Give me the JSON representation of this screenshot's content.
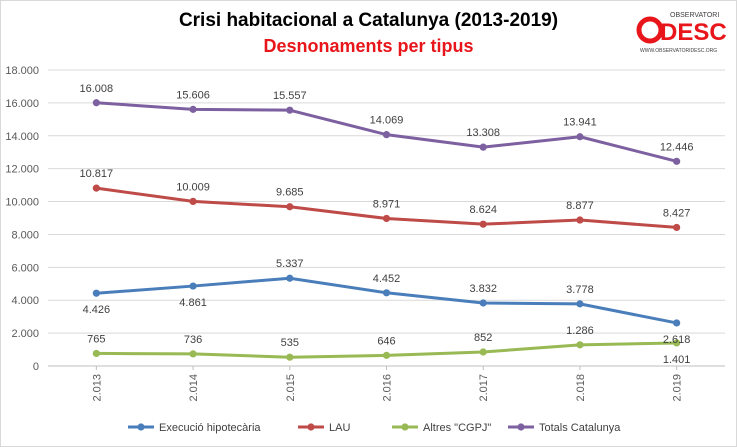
{
  "chart_data": {
    "type": "line",
    "title": "Crisi habitacional a Catalunya (2013-2019)",
    "subtitle": "Desnonaments per tipus",
    "categories": [
      "2.013",
      "2.014",
      "2.015",
      "2.016",
      "2.017",
      "2.018",
      "2.019"
    ],
    "ylim": [
      0,
      18000
    ],
    "ytick_labels": [
      "0",
      "2.000",
      "4.000",
      "6.000",
      "8.000",
      "10.000",
      "12.000",
      "14.000",
      "16.000",
      "18.000"
    ],
    "grid": true,
    "legend_position": "bottom",
    "series": [
      {
        "name": "Execució hipotecària",
        "color": "#4a7ebb",
        "values": [
          4426,
          4861,
          5337,
          4452,
          3832,
          3778,
          2618
        ],
        "labels": [
          "4.426",
          "4.861",
          "5.337",
          "4.452",
          "3.832",
          "3.778",
          "2.618"
        ]
      },
      {
        "name": "LAU",
        "color": "#be4b48",
        "values": [
          10817,
          10009,
          9685,
          8971,
          8624,
          8877,
          8427
        ],
        "labels": [
          "10.817",
          "10.009",
          "9.685",
          "8.971",
          "8.624",
          "8.877",
          "8.427"
        ]
      },
      {
        "name": "Altres \"CGPJ\"",
        "color": "#98b954",
        "values": [
          765,
          736,
          535,
          646,
          852,
          1286,
          1401
        ],
        "labels": [
          "765",
          "736",
          "535",
          "646",
          "852",
          "1.286",
          "1.401"
        ]
      },
      {
        "name": "Totals Catalunya",
        "color": "#7d60a0",
        "values": [
          16008,
          15606,
          15557,
          14069,
          13308,
          13941,
          12446
        ],
        "labels": [
          "16.008",
          "15.606",
          "15.557",
          "14.069",
          "13.308",
          "13.941",
          "12.446"
        ]
      }
    ]
  },
  "logo": {
    "top_text": "OBSERVATORI",
    "main_text": "DESC",
    "url_text": "WWW.OBSERVATORIDESC.ORG",
    "color": "#e8161b"
  }
}
